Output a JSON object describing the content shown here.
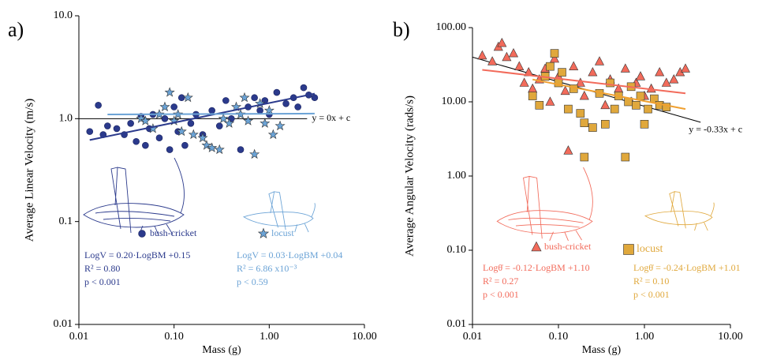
{
  "chart_data": [
    {
      "type": "scatter",
      "panel_label": "a)",
      "x_label": "Mass (g)",
      "y_label": "Average Linear Velocity (m/s)",
      "xscale": "log",
      "yscale": "log",
      "xlim": [
        0.01,
        10
      ],
      "ylim": [
        0.01,
        10
      ],
      "xticks": [
        0.01,
        {
          "value": 0.1,
          "label": "0.10"
        },
        {
          "value": 1,
          "label": "1.00"
        },
        {
          "value": 10,
          "label": "10.00"
        }
      ],
      "yticks": [
        0.01,
        0.1,
        {
          "value": 1,
          "label": "1.0"
        },
        {
          "value": 10,
          "label": "10.0"
        }
      ],
      "series": [
        {
          "name": "bush-cricket",
          "marker": "circle",
          "color": "#2b3a8c",
          "x": [
            0.013,
            0.016,
            0.018,
            0.02,
            0.025,
            0.03,
            0.035,
            0.04,
            0.045,
            0.05,
            0.055,
            0.06,
            0.07,
            0.08,
            0.09,
            0.1,
            0.11,
            0.12,
            0.13,
            0.15,
            0.17,
            0.2,
            0.25,
            0.3,
            0.35,
            0.4,
            0.5,
            0.6,
            0.7,
            0.8,
            0.9,
            1.0,
            1.2,
            1.5,
            1.8,
            2.0,
            2.3,
            2.6,
            3.0
          ],
          "values": [
            0.75,
            1.35,
            0.7,
            0.85,
            0.8,
            0.7,
            0.9,
            0.6,
            1.05,
            0.55,
            0.8,
            1.1,
            0.65,
            1.0,
            0.5,
            1.3,
            0.75,
            1.6,
            0.55,
            0.9,
            1.1,
            0.7,
            1.2,
            0.85,
            1.5,
            1.0,
            0.5,
            1.3,
            1.6,
            1.2,
            1.5,
            1.1,
            1.8,
            1.4,
            1.6,
            1.3,
            2.0,
            1.7,
            1.6
          ],
          "equation": "LogV = 0.20·LogBM +0.15",
          "r2": "R² = 0.80",
          "p": "p < 0.001"
        },
        {
          "name": "locust",
          "marker": "star",
          "color": "#6ba3d6",
          "x": [
            0.045,
            0.05,
            0.06,
            0.07,
            0.08,
            0.09,
            0.1,
            0.11,
            0.12,
            0.14,
            0.16,
            0.2,
            0.22,
            0.25,
            0.3,
            0.33,
            0.38,
            0.45,
            0.5,
            0.55,
            0.6,
            0.7,
            0.8,
            0.9,
            1.0,
            1.1,
            1.3
          ],
          "values": [
            1.0,
            0.95,
            0.8,
            1.1,
            1.3,
            1.8,
            0.95,
            1.1,
            0.75,
            1.6,
            0.7,
            0.65,
            0.55,
            0.52,
            0.5,
            1.0,
            0.9,
            1.3,
            1.1,
            1.6,
            0.95,
            0.45,
            1.4,
            0.9,
            1.2,
            0.7,
            0.85
          ],
          "equation": "LogV = 0.03·LogBM +0.04",
          "r2": "R² = 6.86 x10⁻³",
          "p": "p < 0.59"
        }
      ],
      "fit_lines": [
        {
          "color": "#2b3a8c",
          "x": [
            0.013,
            3
          ],
          "y": [
            0.62,
            1.75
          ]
        },
        {
          "color": "#6ba3d6",
          "x": [
            0.02,
            3
          ],
          "y": [
            1.1,
            1.12
          ]
        }
      ],
      "reference_line": {
        "label": "y = 0x + c",
        "color": "#000000",
        "x": [
          0.01,
          2.5
        ],
        "y": [
          1,
          1
        ]
      }
    },
    {
      "type": "scatter",
      "panel_label": "b)",
      "x_label": "Mass (g)",
      "y_label": "Average  Angular  Velocity (rads/s)",
      "xscale": "log",
      "yscale": "log",
      "xlim": [
        0.01,
        10
      ],
      "ylim": [
        0.01,
        100
      ],
      "xticks": [
        0.01,
        {
          "value": 0.1,
          "label": "0.10"
        },
        {
          "value": 1,
          "label": "1.00"
        },
        {
          "value": 10,
          "label": "10.00"
        }
      ],
      "yticks": [
        0.01,
        {
          "value": 0.1,
          "label": "0.10"
        },
        {
          "value": 1,
          "label": "1.00"
        },
        {
          "value": 10,
          "label": "10.00"
        },
        {
          "value": 100,
          "label": "100.00"
        }
      ],
      "series": [
        {
          "name": "bush-cricket",
          "marker": "triangle",
          "color": "#f26b5b",
          "x": [
            0.013,
            0.017,
            0.02,
            0.022,
            0.025,
            0.03,
            0.035,
            0.04,
            0.045,
            0.05,
            0.06,
            0.07,
            0.08,
            0.09,
            0.1,
            0.12,
            0.13,
            0.15,
            0.18,
            0.2,
            0.25,
            0.3,
            0.35,
            0.4,
            0.5,
            0.6,
            0.7,
            0.8,
            0.9,
            1.0,
            1.2,
            1.5,
            1.8,
            2.2,
            2.6,
            3.0
          ],
          "values": [
            42,
            35,
            55,
            62,
            40,
            45,
            30,
            18,
            25,
            15,
            20,
            28,
            10,
            38,
            22,
            14,
            2.2,
            30,
            18,
            12,
            25,
            35,
            9,
            20,
            15,
            28,
            10,
            18,
            22,
            12,
            15,
            25,
            18,
            20,
            25,
            28
          ],
          "equation": "Logθ̇ = -0.12·LogBM +1.10",
          "r2": "R² = 0.27",
          "p": "p < 0.001"
        },
        {
          "name": "locust",
          "marker": "square",
          "color": "#e0a83c",
          "x": [
            0.05,
            0.06,
            0.07,
            0.08,
            0.09,
            0.1,
            0.11,
            0.13,
            0.15,
            0.18,
            0.2,
            0.2,
            0.25,
            0.3,
            0.35,
            0.4,
            0.45,
            0.5,
            0.6,
            0.65,
            0.7,
            0.8,
            0.9,
            1.0,
            1.1,
            1.3,
            1.5,
            1.8
          ],
          "values": [
            12,
            9,
            22,
            30,
            45,
            18,
            25,
            8,
            15,
            7,
            5.2,
            1.8,
            4.5,
            13,
            5,
            18,
            8,
            12,
            1.8,
            10,
            16,
            9,
            12,
            5,
            8,
            11,
            9,
            8.5
          ],
          "equation": "Logθ̇ = -0.24·LogBM +1.01",
          "r2": "R² = 0.10",
          "p": "p < 0.001"
        }
      ],
      "fit_lines": [
        {
          "color": "#f26b5b",
          "x": [
            0.013,
            3
          ],
          "y": [
            27,
            13
          ]
        },
        {
          "color": "#f0a030",
          "x": [
            0.05,
            3
          ],
          "y": [
            20,
            8
          ]
        }
      ],
      "reference_line": {
        "label": "y = -0.33x + c",
        "color": "#000000",
        "x": [
          0.01,
          4.5
        ],
        "y": [
          40,
          5.3
        ]
      }
    }
  ]
}
